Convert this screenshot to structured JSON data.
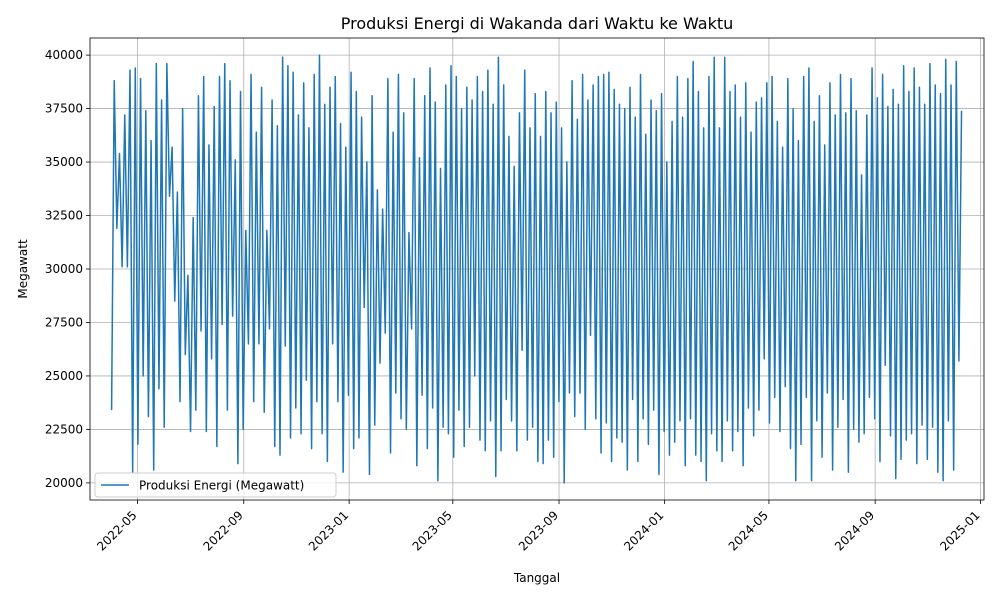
{
  "chart_data": {
    "type": "line",
    "title": "Produksi Energi di Wakanda dari Waktu ke Waktu",
    "xlabel": "Tanggal",
    "ylabel": "Megawatt",
    "x_start": "2022-04-01",
    "x_end": "2024-12-10",
    "xlim": [
      "2022-03-07",
      "2025-01-05"
    ],
    "ylim": [
      19200,
      40800
    ],
    "x_ticks": [
      "2022-05",
      "2022-09",
      "2023-01",
      "2023-05",
      "2023-09",
      "2024-01",
      "2024-05",
      "2024-09",
      "2025-01"
    ],
    "y_ticks": [
      20000,
      22500,
      25000,
      27500,
      30000,
      32500,
      35000,
      37500,
      40000
    ],
    "y_tick_labels": [
      "20000",
      "22500",
      "25000",
      "27500",
      "30000",
      "32500",
      "35000",
      "37500",
      "40000"
    ],
    "grid": true,
    "legend_position": "lower-left",
    "series": [
      {
        "name": "Produksi Energi (Megawatt)",
        "color": "#1f77b4",
        "values": [
          23400,
          38800,
          31900,
          35400,
          30100,
          37200,
          30100,
          39300,
          20500,
          39400,
          21800,
          38900,
          25000,
          37400,
          23100,
          36000,
          20600,
          39600,
          24400,
          37900,
          22600,
          39600,
          33400,
          35700,
          28500,
          33600,
          23800,
          37500,
          26000,
          29700,
          22400,
          32400,
          23400,
          38100,
          27100,
          39000,
          22400,
          35800,
          25800,
          37600,
          21700,
          39000,
          27400,
          39600,
          23400,
          38800,
          27800,
          35100,
          20900,
          38300,
          22500,
          31800,
          26500,
          39100,
          23800,
          36400,
          26500,
          38500,
          23300,
          31800,
          27200,
          37900,
          21700,
          36700,
          21300,
          39900,
          26400,
          39500,
          22100,
          39200,
          23500,
          37200,
          22300,
          38700,
          24800,
          36600,
          21600,
          39100,
          23800,
          40000,
          22300,
          37700,
          21000,
          38500,
          26500,
          39000,
          23800,
          36800,
          20500,
          35700,
          24100,
          39200,
          21600,
          38300,
          22100,
          37100,
          28200,
          35000,
          20400,
          38100,
          22700,
          33700,
          25600,
          32800,
          27000,
          38900,
          21400,
          36400,
          24200,
          39100,
          23000,
          37300,
          22500,
          31700,
          27200,
          38900,
          20800,
          35200,
          24100,
          38100,
          21600,
          39400,
          23500,
          37800,
          20100,
          34700,
          22600,
          38600,
          22300,
          39500,
          21200,
          39000,
          23400,
          37500,
          21700,
          38500,
          22600,
          37900,
          25000,
          39000,
          22000,
          38300,
          21500,
          39300,
          22900,
          37700,
          20300,
          39900,
          21500,
          38600,
          23900,
          36200,
          22900,
          34800,
          21500,
          37300,
          26200,
          39300,
          22000,
          36600,
          22600,
          38200,
          21000,
          36200,
          20900,
          38300,
          22000,
          37300,
          21200,
          37800,
          23800,
          36600,
          20000,
          35000,
          24200,
          38800,
          23100,
          37000,
          24200,
          39100,
          22500,
          37900,
          26900,
          38600,
          23000,
          39000,
          21400,
          39100,
          22800,
          39200,
          21000,
          38400,
          22100,
          37700,
          21900,
          37500,
          20600,
          38500,
          23900,
          37100,
          21000,
          39100,
          23000,
          36300,
          21800,
          37900,
          23400,
          37400,
          20400,
          38200,
          22400,
          35000,
          21300,
          36900,
          21900,
          39000,
          22900,
          37100,
          20800,
          38900,
          23000,
          39700,
          21300,
          38300,
          21000,
          36600,
          20100,
          39000,
          22300,
          39900,
          21500,
          36600,
          21000,
          39900,
          22900,
          38300,
          21500,
          38600,
          22400,
          37100,
          20800,
          38700,
          23500,
          36400,
          22200,
          37800,
          23400,
          38000,
          25800,
          38700,
          22800,
          39000,
          24000,
          36900,
          22400,
          35700,
          24500,
          38900,
          21600,
          37500,
          20100,
          36000,
          21800,
          39000,
          24000,
          39400,
          20100,
          36900,
          22900,
          38100,
          21200,
          35800,
          24200,
          38700,
          20600,
          37200,
          22600,
          39100,
          23900,
          37300,
          20500,
          38900,
          22500,
          37400,
          21900,
          34400,
          22300,
          37200,
          24000,
          39400,
          23000,
          38000,
          21000,
          39100,
          25500,
          37600,
          22200,
          38400,
          20200,
          37700,
          21100,
          39500,
          22000,
          38300,
          22300,
          39400,
          20900,
          38500,
          22700,
          37700,
          21100,
          39600,
          22600,
          38600,
          20500,
          38200,
          20100,
          39800,
          22900,
          38600,
          20600,
          39700,
          25700,
          37400
        ]
      }
    ]
  }
}
